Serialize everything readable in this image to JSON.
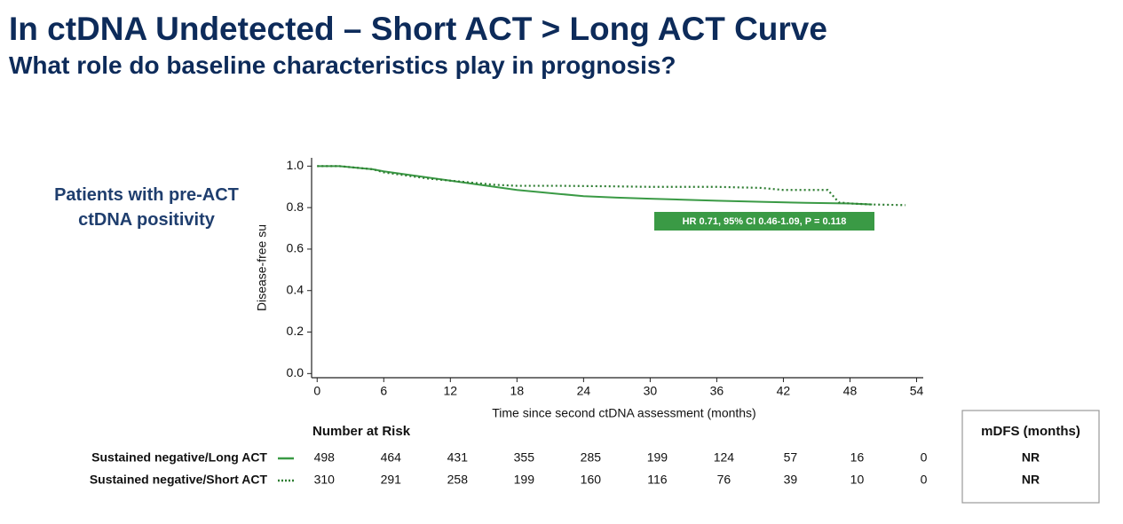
{
  "chart_data": {
    "type": "line",
    "title": "In ctDNA Undetected – Short ACT > Long ACT Curve",
    "subtitle": "What role do baseline characteristics play in prognosis?",
    "side_label": "Patients with pre-ACT ctDNA positivity",
    "y_label": "Disease-free su",
    "x_label": "Time since second ctDNA assessment (months)",
    "annotation": "HR 0.71, 95% CI 0.46-1.09, P = 0.118",
    "annotation_color": "#3a9a45",
    "xlim": [
      -0.5,
      54.6
    ],
    "ylim": [
      -0.02,
      1.04
    ],
    "xticks": [
      0,
      6,
      12,
      18,
      24,
      30,
      36,
      42,
      48,
      54
    ],
    "yticks": [
      {
        "value": 0,
        "label": "0.0"
      },
      0.2,
      0.4,
      0.6,
      0.8,
      {
        "value": 1,
        "label": "1.0"
      }
    ],
    "number_at_risk_title": "Number at Risk",
    "mdfs_header": "mDFS (months)",
    "series": [
      {
        "name": "Sustained negative/Long ACT",
        "color": "#3a9a45",
        "style": "solid",
        "x": [
          0,
          2,
          4,
          5,
          6,
          8,
          10,
          12,
          14,
          16,
          18,
          20,
          22,
          24,
          27,
          30,
          33,
          36,
          40,
          44,
          48,
          50
        ],
        "values": [
          1.0,
          1.0,
          0.99,
          0.985,
          0.975,
          0.96,
          0.945,
          0.93,
          0.915,
          0.9,
          0.885,
          0.875,
          0.865,
          0.855,
          0.848,
          0.843,
          0.838,
          0.833,
          0.828,
          0.823,
          0.82,
          0.815
        ],
        "at_risk": [
          498,
          464,
          431,
          355,
          285,
          199,
          124,
          57,
          16,
          0
        ],
        "mdfs": "NR"
      },
      {
        "name": "Sustained negative/Short ACT",
        "color": "#2e7d32",
        "style": "dotted",
        "x": [
          0,
          2,
          4,
          5,
          6,
          8,
          10,
          12,
          14,
          16,
          18,
          22,
          26,
          30,
          36,
          40,
          42,
          46,
          47,
          48,
          50,
          53
        ],
        "values": [
          1.0,
          1.0,
          0.99,
          0.985,
          0.97,
          0.955,
          0.94,
          0.93,
          0.92,
          0.91,
          0.905,
          0.905,
          0.903,
          0.9,
          0.9,
          0.895,
          0.885,
          0.885,
          0.825,
          0.82,
          0.815,
          0.812
        ],
        "at_risk": [
          310,
          291,
          258,
          199,
          160,
          116,
          76,
          39,
          10,
          0
        ],
        "mdfs": "NR"
      }
    ]
  }
}
